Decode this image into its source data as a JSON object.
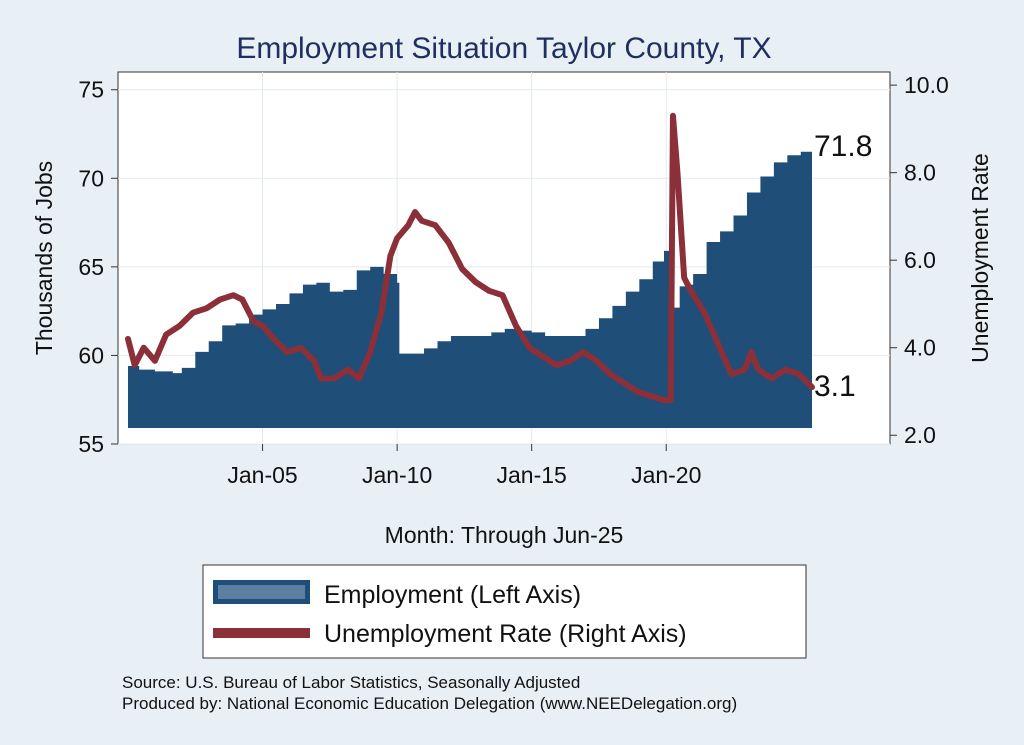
{
  "chart_data": {
    "type": "area",
    "title": "Employment Situation Taylor  County, TX",
    "xlabel": "Month: Through Jun-25",
    "ylabel_left": "Thousands of Jobs",
    "ylabel_right": "Unemployment Rate",
    "x_range": [
      "Jan-00",
      "Jun-25"
    ],
    "x_ticks": [
      "Jan-05",
      "Jan-10",
      "Jan-15",
      "Jan-20"
    ],
    "y_left": {
      "range": [
        55,
        76
      ],
      "ticks": [
        "55",
        "60",
        "65",
        "70",
        "75"
      ]
    },
    "y_right": {
      "range": [
        1.8,
        10.3
      ],
      "ticks": [
        "2.0",
        "4.0",
        "6.0",
        "8.0",
        "10.0"
      ]
    },
    "grid": true,
    "legend_position": "bottom",
    "series": [
      {
        "name": "Employment (Left Axis)",
        "axis": "left",
        "style": "area",
        "color": "#1f4e79",
        "points": [
          [
            "2000-01",
            59.4
          ],
          [
            "2000-06",
            59.2
          ],
          [
            "2001-01",
            59.1
          ],
          [
            "2001-09",
            59.0
          ],
          [
            "2002-01",
            59.3
          ],
          [
            "2002-07",
            60.2
          ],
          [
            "2003-01",
            60.8
          ],
          [
            "2003-07",
            61.7
          ],
          [
            "2004-01",
            61.8
          ],
          [
            "2004-07",
            62.3
          ],
          [
            "2005-01",
            62.6
          ],
          [
            "2005-07",
            62.9
          ],
          [
            "2006-01",
            63.5
          ],
          [
            "2006-07",
            64.0
          ],
          [
            "2007-01",
            64.1
          ],
          [
            "2007-07",
            63.6
          ],
          [
            "2008-01",
            63.7
          ],
          [
            "2008-07",
            64.8
          ],
          [
            "2009-01",
            65.0
          ],
          [
            "2009-07",
            64.6
          ],
          [
            "2010-01",
            64.1
          ],
          [
            "2010-02",
            60.1
          ],
          [
            "2010-07",
            60.1
          ],
          [
            "2011-01",
            60.4
          ],
          [
            "2011-07",
            60.8
          ],
          [
            "2012-01",
            61.1
          ],
          [
            "2012-07",
            61.1
          ],
          [
            "2013-01",
            61.1
          ],
          [
            "2013-07",
            61.3
          ],
          [
            "2014-01",
            61.5
          ],
          [
            "2014-07",
            61.4
          ],
          [
            "2015-01",
            61.3
          ],
          [
            "2015-07",
            61.1
          ],
          [
            "2016-01",
            61.1
          ],
          [
            "2016-07",
            61.1
          ],
          [
            "2017-01",
            61.5
          ],
          [
            "2017-07",
            62.1
          ],
          [
            "2018-01",
            62.8
          ],
          [
            "2018-07",
            63.6
          ],
          [
            "2019-01",
            64.3
          ],
          [
            "2019-07",
            65.3
          ],
          [
            "2019-12",
            65.9
          ],
          [
            "2020-02",
            65.9
          ],
          [
            "2020-04",
            62.7
          ],
          [
            "2020-07",
            63.9
          ],
          [
            "2020-10",
            64.0
          ],
          [
            "2021-01",
            64.6
          ],
          [
            "2021-07",
            66.4
          ],
          [
            "2022-01",
            67.0
          ],
          [
            "2022-07",
            67.9
          ],
          [
            "2023-01",
            69.2
          ],
          [
            "2023-07",
            70.1
          ],
          [
            "2024-01",
            70.9
          ],
          [
            "2024-07",
            71.3
          ],
          [
            "2025-01",
            71.5
          ],
          [
            "2025-06",
            71.8
          ]
        ]
      },
      {
        "name": "Unemployment Rate (Right Axis)",
        "axis": "right",
        "style": "line",
        "color": "#8b2f38",
        "points": [
          [
            "2000-01",
            4.2
          ],
          [
            "2000-04",
            3.6
          ],
          [
            "2000-08",
            4.0
          ],
          [
            "2001-01",
            3.7
          ],
          [
            "2001-06",
            4.3
          ],
          [
            "2001-12",
            4.5
          ],
          [
            "2002-06",
            4.8
          ],
          [
            "2002-12",
            4.9
          ],
          [
            "2003-06",
            5.1
          ],
          [
            "2003-12",
            5.2
          ],
          [
            "2004-04",
            5.1
          ],
          [
            "2004-09",
            4.6
          ],
          [
            "2005-01",
            4.5
          ],
          [
            "2005-06",
            4.2
          ],
          [
            "2005-12",
            3.9
          ],
          [
            "2006-06",
            4.0
          ],
          [
            "2006-12",
            3.7
          ],
          [
            "2007-03",
            3.3
          ],
          [
            "2007-09",
            3.3
          ],
          [
            "2008-03",
            3.5
          ],
          [
            "2008-08",
            3.3
          ],
          [
            "2009-01",
            3.9
          ],
          [
            "2009-06",
            4.8
          ],
          [
            "2009-10",
            6.1
          ],
          [
            "2010-01",
            6.5
          ],
          [
            "2010-06",
            6.8
          ],
          [
            "2010-09",
            7.1
          ],
          [
            "2010-12",
            6.9
          ],
          [
            "2011-06",
            6.8
          ],
          [
            "2011-12",
            6.4
          ],
          [
            "2012-06",
            5.8
          ],
          [
            "2012-12",
            5.5
          ],
          [
            "2013-06",
            5.3
          ],
          [
            "2013-12",
            5.2
          ],
          [
            "2014-06",
            4.5
          ],
          [
            "2014-12",
            4.0
          ],
          [
            "2015-06",
            3.8
          ],
          [
            "2015-12",
            3.6
          ],
          [
            "2016-06",
            3.7
          ],
          [
            "2016-12",
            3.9
          ],
          [
            "2017-06",
            3.7
          ],
          [
            "2017-12",
            3.4
          ],
          [
            "2018-06",
            3.2
          ],
          [
            "2018-12",
            3.0
          ],
          [
            "2019-06",
            2.9
          ],
          [
            "2019-12",
            2.8
          ],
          [
            "2020-01",
            2.8
          ],
          [
            "2020-03",
            2.8
          ],
          [
            "2020-04",
            9.3
          ],
          [
            "2020-06",
            8.0
          ],
          [
            "2020-09",
            5.6
          ],
          [
            "2020-12",
            5.3
          ],
          [
            "2021-06",
            4.8
          ],
          [
            "2021-12",
            4.1
          ],
          [
            "2022-06",
            3.4
          ],
          [
            "2022-12",
            3.5
          ],
          [
            "2023-03",
            3.9
          ],
          [
            "2023-06",
            3.5
          ],
          [
            "2023-12",
            3.3
          ],
          [
            "2024-06",
            3.5
          ],
          [
            "2024-12",
            3.4
          ],
          [
            "2025-06",
            3.1
          ]
        ]
      }
    ],
    "end_labels": {
      "employment": "71.8",
      "unemployment": "3.1"
    }
  },
  "source": {
    "line1": "Source: U.S. Bureau of Labor Statistics, Seasonally Adjusted",
    "line2": "Produced by: National Economic Education Delegation (www.NEEDelegation.org)"
  }
}
